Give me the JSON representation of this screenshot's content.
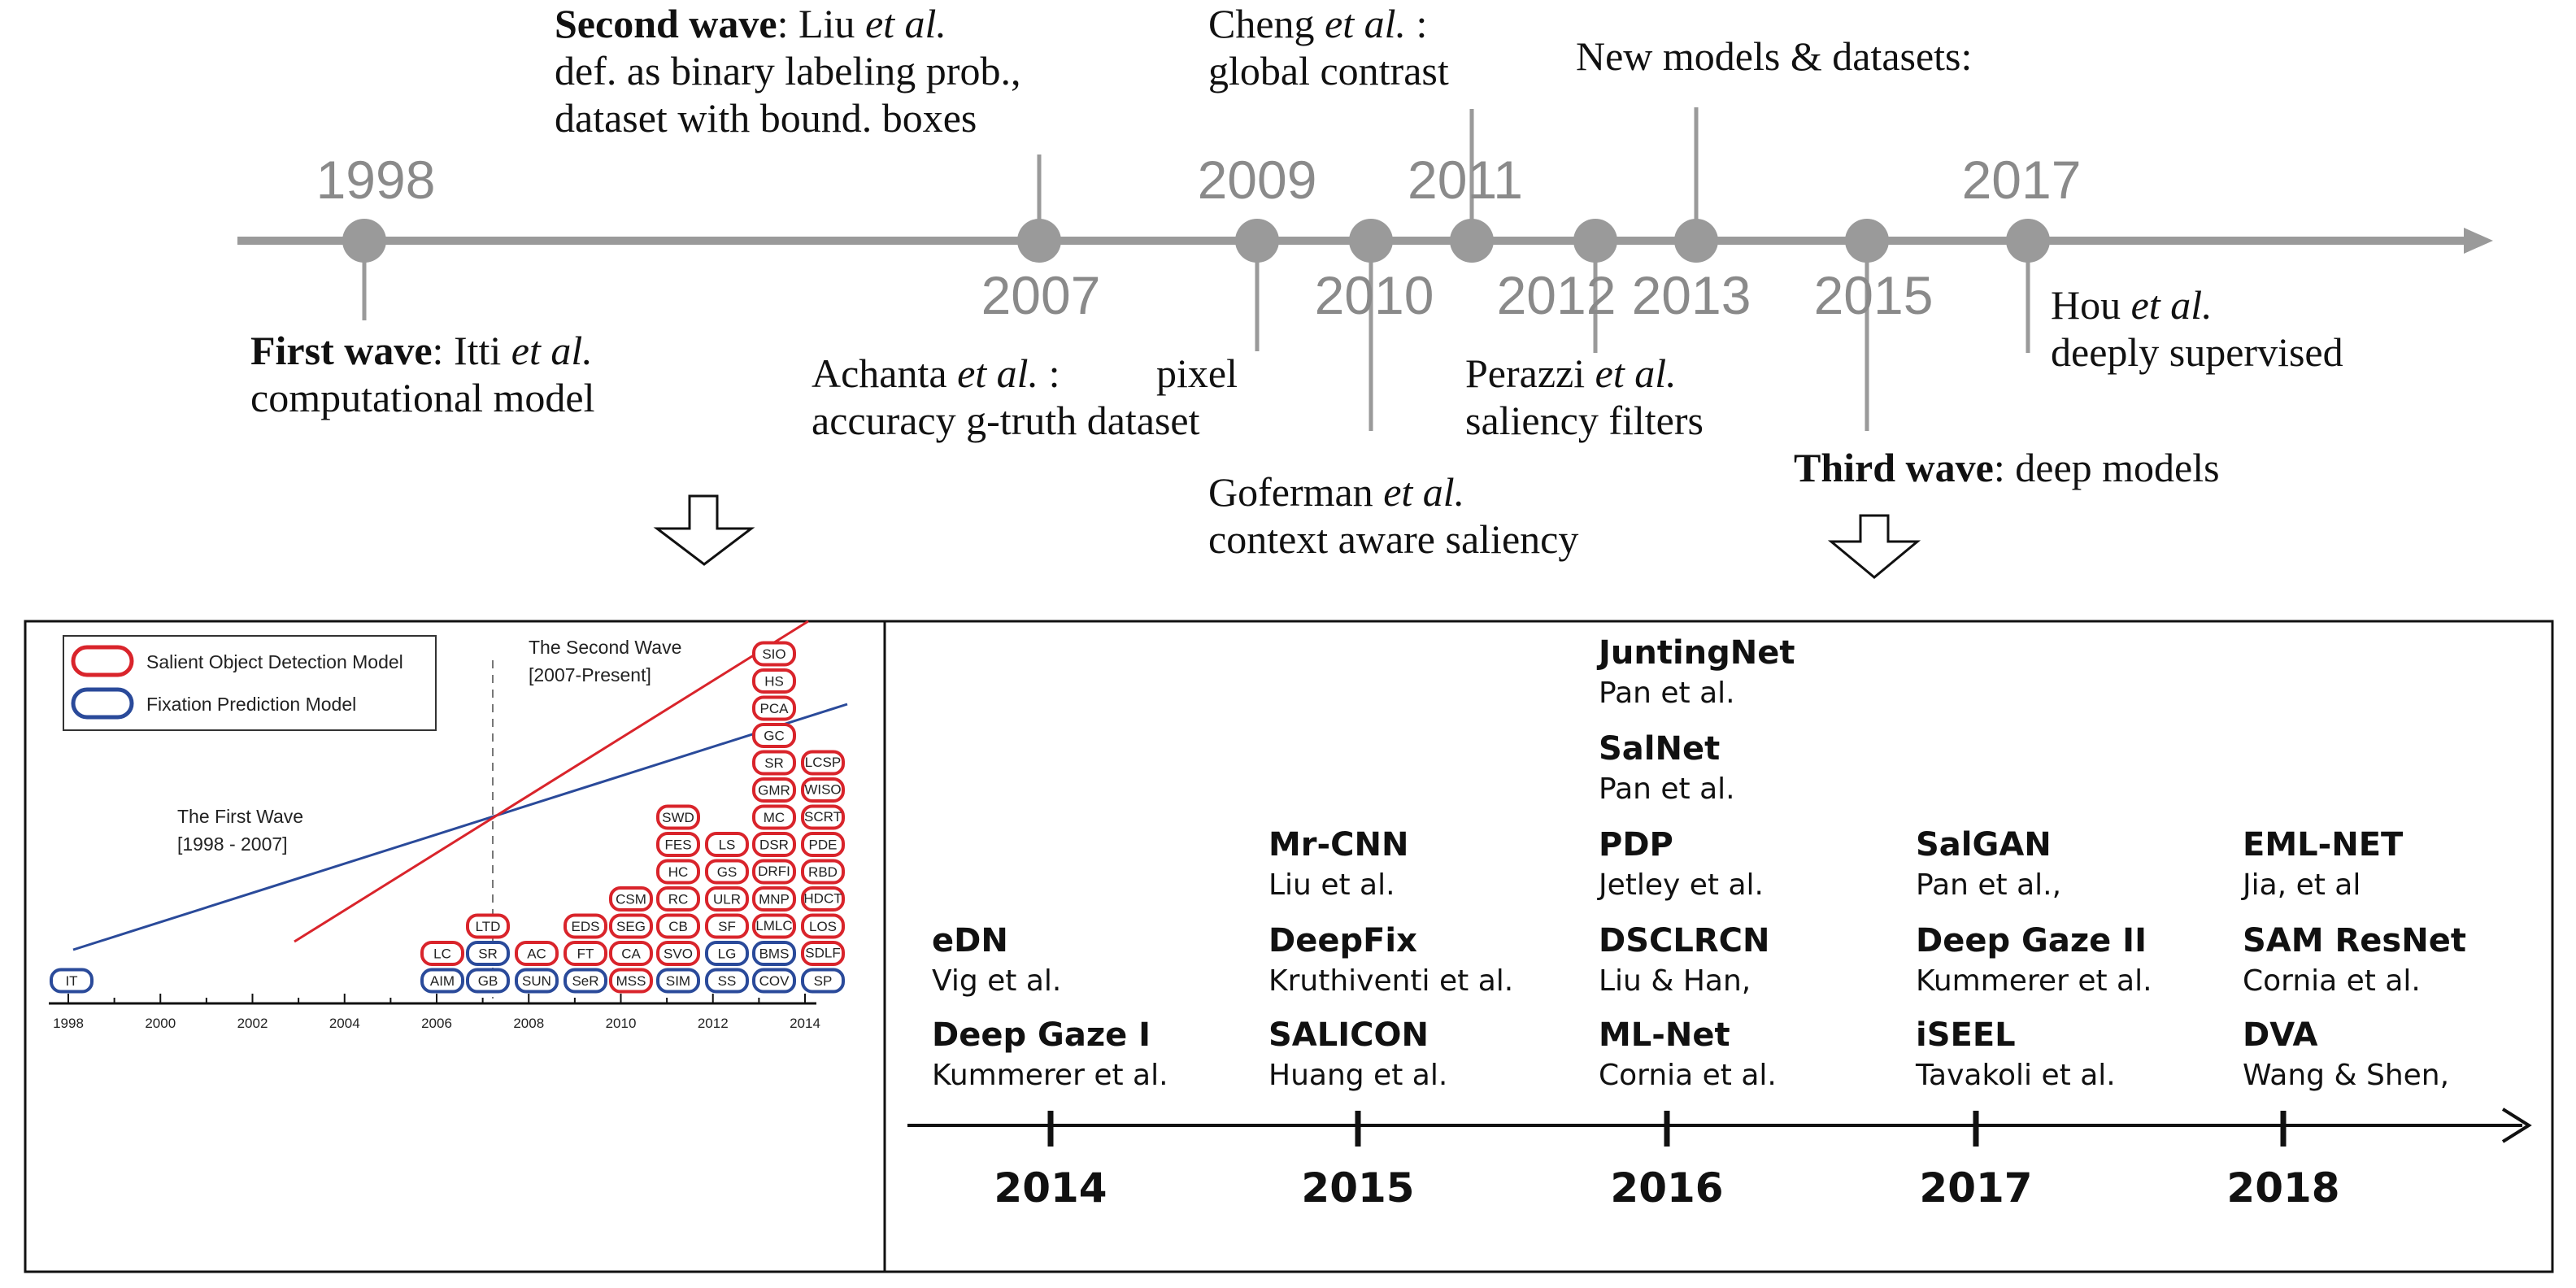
{
  "top_timeline": {
    "upper_years": [
      "1998",
      "2009",
      "2011",
      "2017"
    ],
    "lower_years": [
      "2007",
      "2010",
      "2012",
      "2013",
      "2015"
    ],
    "events": {
      "first_wave": {
        "title": "First wave",
        "rest": ": Itti ",
        "etal": "et al.",
        "line2": "computational model"
      },
      "second_wave": {
        "title": "Second wave",
        "rest": ": Liu ",
        "etal": "et al.",
        "line2": "def. as binary labeling prob.,",
        "line3": "dataset with bound. boxes"
      },
      "achanta": {
        "name": "Achanta ",
        "etal": "et al.",
        "sep": " :",
        "tail": "pixel",
        "line2": "accuracy g-truth dataset"
      },
      "cheng": {
        "name": "Cheng ",
        "etal": "et al.",
        "sep": " :",
        "line2": "global contrast"
      },
      "goferman": {
        "name": "Goferman ",
        "etal": "et al.",
        "line2": "context aware saliency"
      },
      "perazzi": {
        "name": "Perazzi ",
        "etal": "et al.",
        "line2": "saliency filters"
      },
      "new_models": {
        "text": "New models & datasets:"
      },
      "third_wave": {
        "title": "Third wave",
        "rest": ": deep models"
      },
      "hou": {
        "name": "Hou ",
        "etal": "et al.",
        "line2": "deeply supervised"
      }
    }
  },
  "left_chart": {
    "legend": {
      "salient": "Salient Object Detection Model",
      "fixation": "Fixation Prediction Model"
    },
    "first_wave_label": {
      "line1": "The First Wave",
      "line2": "[1998 - 2007]"
    },
    "second_wave_label": {
      "line1": "The Second Wave",
      "line2": "[2007-Present]"
    },
    "axis_years": [
      "1998",
      "2000",
      "2002",
      "2004",
      "2006",
      "2008",
      "2010",
      "2012",
      "2014"
    ],
    "boxes": [
      {
        "label": "IT",
        "kind": "blue",
        "col": 0,
        "row": 0
      },
      {
        "label": "AIM",
        "kind": "blue",
        "col": 1,
        "row": 0
      },
      {
        "label": "GB",
        "kind": "blue",
        "col": 2,
        "row": 0
      },
      {
        "label": "SUN",
        "kind": "blue",
        "col": 3,
        "row": 0
      },
      {
        "label": "SeR",
        "kind": "blue",
        "col": 4,
        "row": 0
      },
      {
        "label": "MSS",
        "kind": "red",
        "col": 5,
        "row": 0
      },
      {
        "label": "SIM",
        "kind": "blue",
        "col": 6,
        "row": 0
      },
      {
        "label": "SS",
        "kind": "blue",
        "col": 7,
        "row": 0
      },
      {
        "label": "COV",
        "kind": "blue",
        "col": 8,
        "row": 0
      },
      {
        "label": "SP",
        "kind": "blue",
        "col": 9,
        "row": 0
      },
      {
        "label": "LC",
        "kind": "red",
        "col": 1,
        "row": 1
      },
      {
        "label": "SR",
        "kind": "blue",
        "col": 2,
        "row": 1
      },
      {
        "label": "AC",
        "kind": "red",
        "col": 3,
        "row": 1
      },
      {
        "label": "FT",
        "kind": "red",
        "col": 4,
        "row": 1
      },
      {
        "label": "CA",
        "kind": "red",
        "col": 5,
        "row": 1
      },
      {
        "label": "SVO",
        "kind": "red",
        "col": 6,
        "row": 1
      },
      {
        "label": "LG",
        "kind": "blue",
        "col": 7,
        "row": 1
      },
      {
        "label": "BMS",
        "kind": "blue",
        "col": 8,
        "row": 1
      },
      {
        "label": "SDLF",
        "kind": "red",
        "col": 9,
        "row": 1
      },
      {
        "label": "LTD",
        "kind": "red",
        "col": 2,
        "row": 2
      },
      {
        "label": "EDS",
        "kind": "red",
        "col": 4,
        "row": 2
      },
      {
        "label": "SEG",
        "kind": "red",
        "col": 5,
        "row": 2
      },
      {
        "label": "CB",
        "kind": "red",
        "col": 6,
        "row": 2
      },
      {
        "label": "SF",
        "kind": "red",
        "col": 7,
        "row": 2
      },
      {
        "label": "LMLC",
        "kind": "red",
        "col": 8,
        "row": 2
      },
      {
        "label": "LOS",
        "kind": "red",
        "col": 9,
        "row": 2
      },
      {
        "label": "CSM",
        "kind": "red",
        "col": 5,
        "row": 3
      },
      {
        "label": "RC",
        "kind": "red",
        "col": 6,
        "row": 3
      },
      {
        "label": "ULR",
        "kind": "red",
        "col": 7,
        "row": 3
      },
      {
        "label": "MNP",
        "kind": "red",
        "col": 8,
        "row": 3
      },
      {
        "label": "HDCT",
        "kind": "red",
        "col": 9,
        "row": 3
      },
      {
        "label": "HC",
        "kind": "red",
        "col": 6,
        "row": 4
      },
      {
        "label": "GS",
        "kind": "red",
        "col": 7,
        "row": 4
      },
      {
        "label": "DRFI",
        "kind": "red",
        "col": 8,
        "row": 4
      },
      {
        "label": "RBD",
        "kind": "red",
        "col": 9,
        "row": 4
      },
      {
        "label": "FES",
        "kind": "red",
        "col": 6,
        "row": 5
      },
      {
        "label": "LS",
        "kind": "red",
        "col": 7,
        "row": 5
      },
      {
        "label": "DSR",
        "kind": "red",
        "col": 8,
        "row": 5
      },
      {
        "label": "PDE",
        "kind": "red",
        "col": 9,
        "row": 5
      },
      {
        "label": "SWD",
        "kind": "red",
        "col": 6,
        "row": 6
      },
      {
        "label": "MC",
        "kind": "red",
        "col": 8,
        "row": 6
      },
      {
        "label": "SCRT",
        "kind": "red",
        "col": 9,
        "row": 6
      },
      {
        "label": "GMR",
        "kind": "red",
        "col": 8,
        "row": 7
      },
      {
        "label": "WISO",
        "kind": "red",
        "col": 9,
        "row": 7
      },
      {
        "label": "SR",
        "kind": "red",
        "col": 8,
        "row": 8
      },
      {
        "label": "LCSP",
        "kind": "red",
        "col": 9,
        "row": 8
      },
      {
        "label": "GC",
        "kind": "red",
        "col": 8,
        "row": 9
      },
      {
        "label": "PCA",
        "kind": "red",
        "col": 8,
        "row": 10
      },
      {
        "label": "HS",
        "kind": "red",
        "col": 8,
        "row": 11
      },
      {
        "label": "SIO",
        "kind": "red",
        "col": 8,
        "row": 12
      }
    ]
  },
  "right_timeline": {
    "years": [
      "2014",
      "2015",
      "2016",
      "2017",
      "2018"
    ],
    "models": [
      {
        "col": 0,
        "slot": 0,
        "name": "Deep Gaze I",
        "authors": "Kummerer et al."
      },
      {
        "col": 0,
        "slot": 1,
        "name": "eDN",
        "authors": "Vig et al."
      },
      {
        "col": 1,
        "slot": 0,
        "name": "SALICON",
        "authors": "Huang et al."
      },
      {
        "col": 1,
        "slot": 1,
        "name": "DeepFix",
        "authors": "Kruthiventi et al."
      },
      {
        "col": 1,
        "slot": 2,
        "name": "Mr-CNN",
        "authors": "Liu et al."
      },
      {
        "col": 2,
        "slot": 0,
        "name": "ML-Net",
        "authors": "Cornia et al."
      },
      {
        "col": 2,
        "slot": 1,
        "name": "DSCLRCN",
        "authors": "Liu & Han,"
      },
      {
        "col": 2,
        "slot": 2,
        "name": "PDP",
        "authors": "Jetley et al."
      },
      {
        "col": 2,
        "slot": 3,
        "name": "SalNet",
        "authors": "Pan et al."
      },
      {
        "col": 2,
        "slot": 4,
        "name": "JuntingNet",
        "authors": "Pan et al."
      },
      {
        "col": 3,
        "slot": 0,
        "name": "iSEEL",
        "authors": "Tavakoli et al."
      },
      {
        "col": 3,
        "slot": 1,
        "name": "Deep Gaze II",
        "authors": "Kummerer et al."
      },
      {
        "col": 3,
        "slot": 2,
        "name": "SalGAN",
        "authors": "Pan et al.,"
      },
      {
        "col": 4,
        "slot": 0,
        "name": "DVA",
        "authors": "Wang & Shen,"
      },
      {
        "col": 4,
        "slot": 1,
        "name": "SAM ResNet",
        "authors": "Cornia et al."
      },
      {
        "col": 4,
        "slot": 2,
        "name": "EML-NET",
        "authors": "Jia, et al"
      }
    ]
  }
}
